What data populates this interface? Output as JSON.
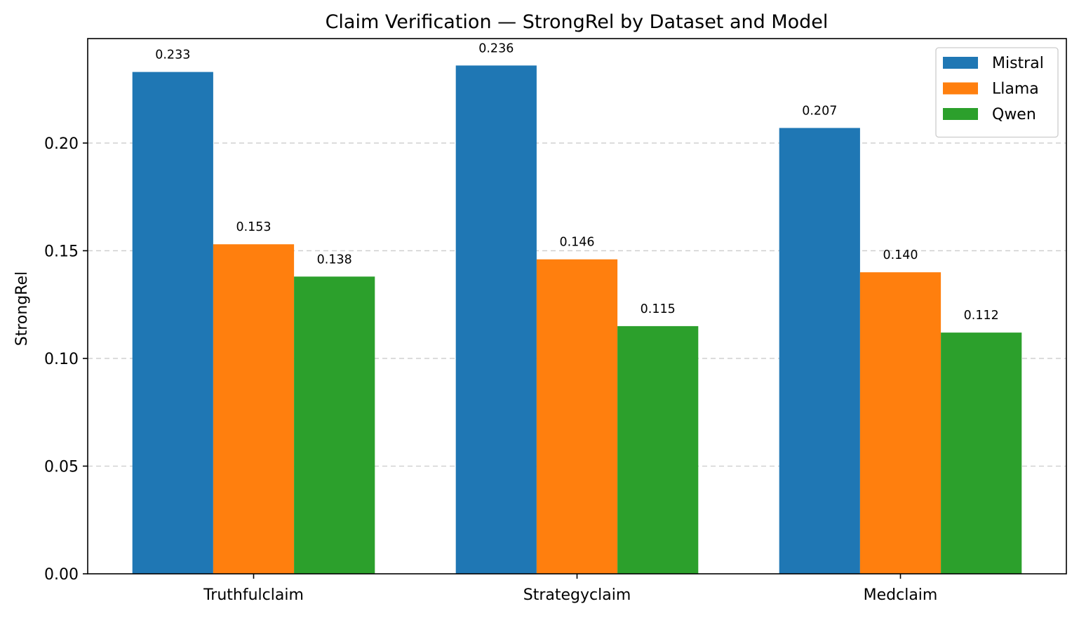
{
  "chart_data": {
    "type": "bar",
    "title": "Claim Verification — StrongRel by Dataset and Model",
    "xlabel": "",
    "ylabel": "StrongRel",
    "categories": [
      "Truthfulclaim",
      "Strategyclaim",
      "Medclaim"
    ],
    "series": [
      {
        "name": "Mistral",
        "color": "#1f77b4",
        "values": [
          0.233,
          0.236,
          0.207
        ],
        "labels": [
          "0.233",
          "0.236",
          "0.207"
        ]
      },
      {
        "name": "Llama",
        "color": "#ff7f0e",
        "values": [
          0.153,
          0.146,
          0.14
        ],
        "labels": [
          "0.153",
          "0.146",
          "0.140"
        ]
      },
      {
        "name": "Qwen",
        "color": "#2ca02c",
        "values": [
          0.138,
          0.115,
          0.112
        ],
        "labels": [
          "0.138",
          "0.115",
          "0.112"
        ]
      }
    ],
    "ylim": [
      0,
      0.2485
    ],
    "yticks": [
      {
        "value": 0.0,
        "label": "0.00"
      },
      {
        "value": 0.05,
        "label": "0.05"
      },
      {
        "value": 0.1,
        "label": "0.10"
      },
      {
        "value": 0.15,
        "label": "0.15"
      },
      {
        "value": 0.2,
        "label": "0.20"
      }
    ],
    "grid": "y-dashed",
    "legend_position": "top-right"
  }
}
